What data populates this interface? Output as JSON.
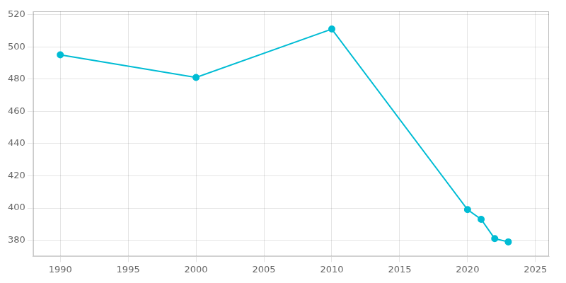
{
  "chart_data": {
    "type": "line",
    "x": [
      1990,
      2000,
      2010,
      2020,
      2021,
      2022,
      2023
    ],
    "values": [
      495,
      481,
      511,
      399,
      393,
      381,
      379
    ],
    "color": "#00bcd4",
    "marker": "circle",
    "xlim": [
      1988,
      2026
    ],
    "xticks": [
      1990,
      1995,
      2000,
      2005,
      2010,
      2015,
      2020,
      2025
    ],
    "ylim": [
      370,
      522
    ],
    "yticks": [
      380,
      400,
      420,
      440,
      460,
      480,
      500,
      520
    ],
    "grid": true
  }
}
